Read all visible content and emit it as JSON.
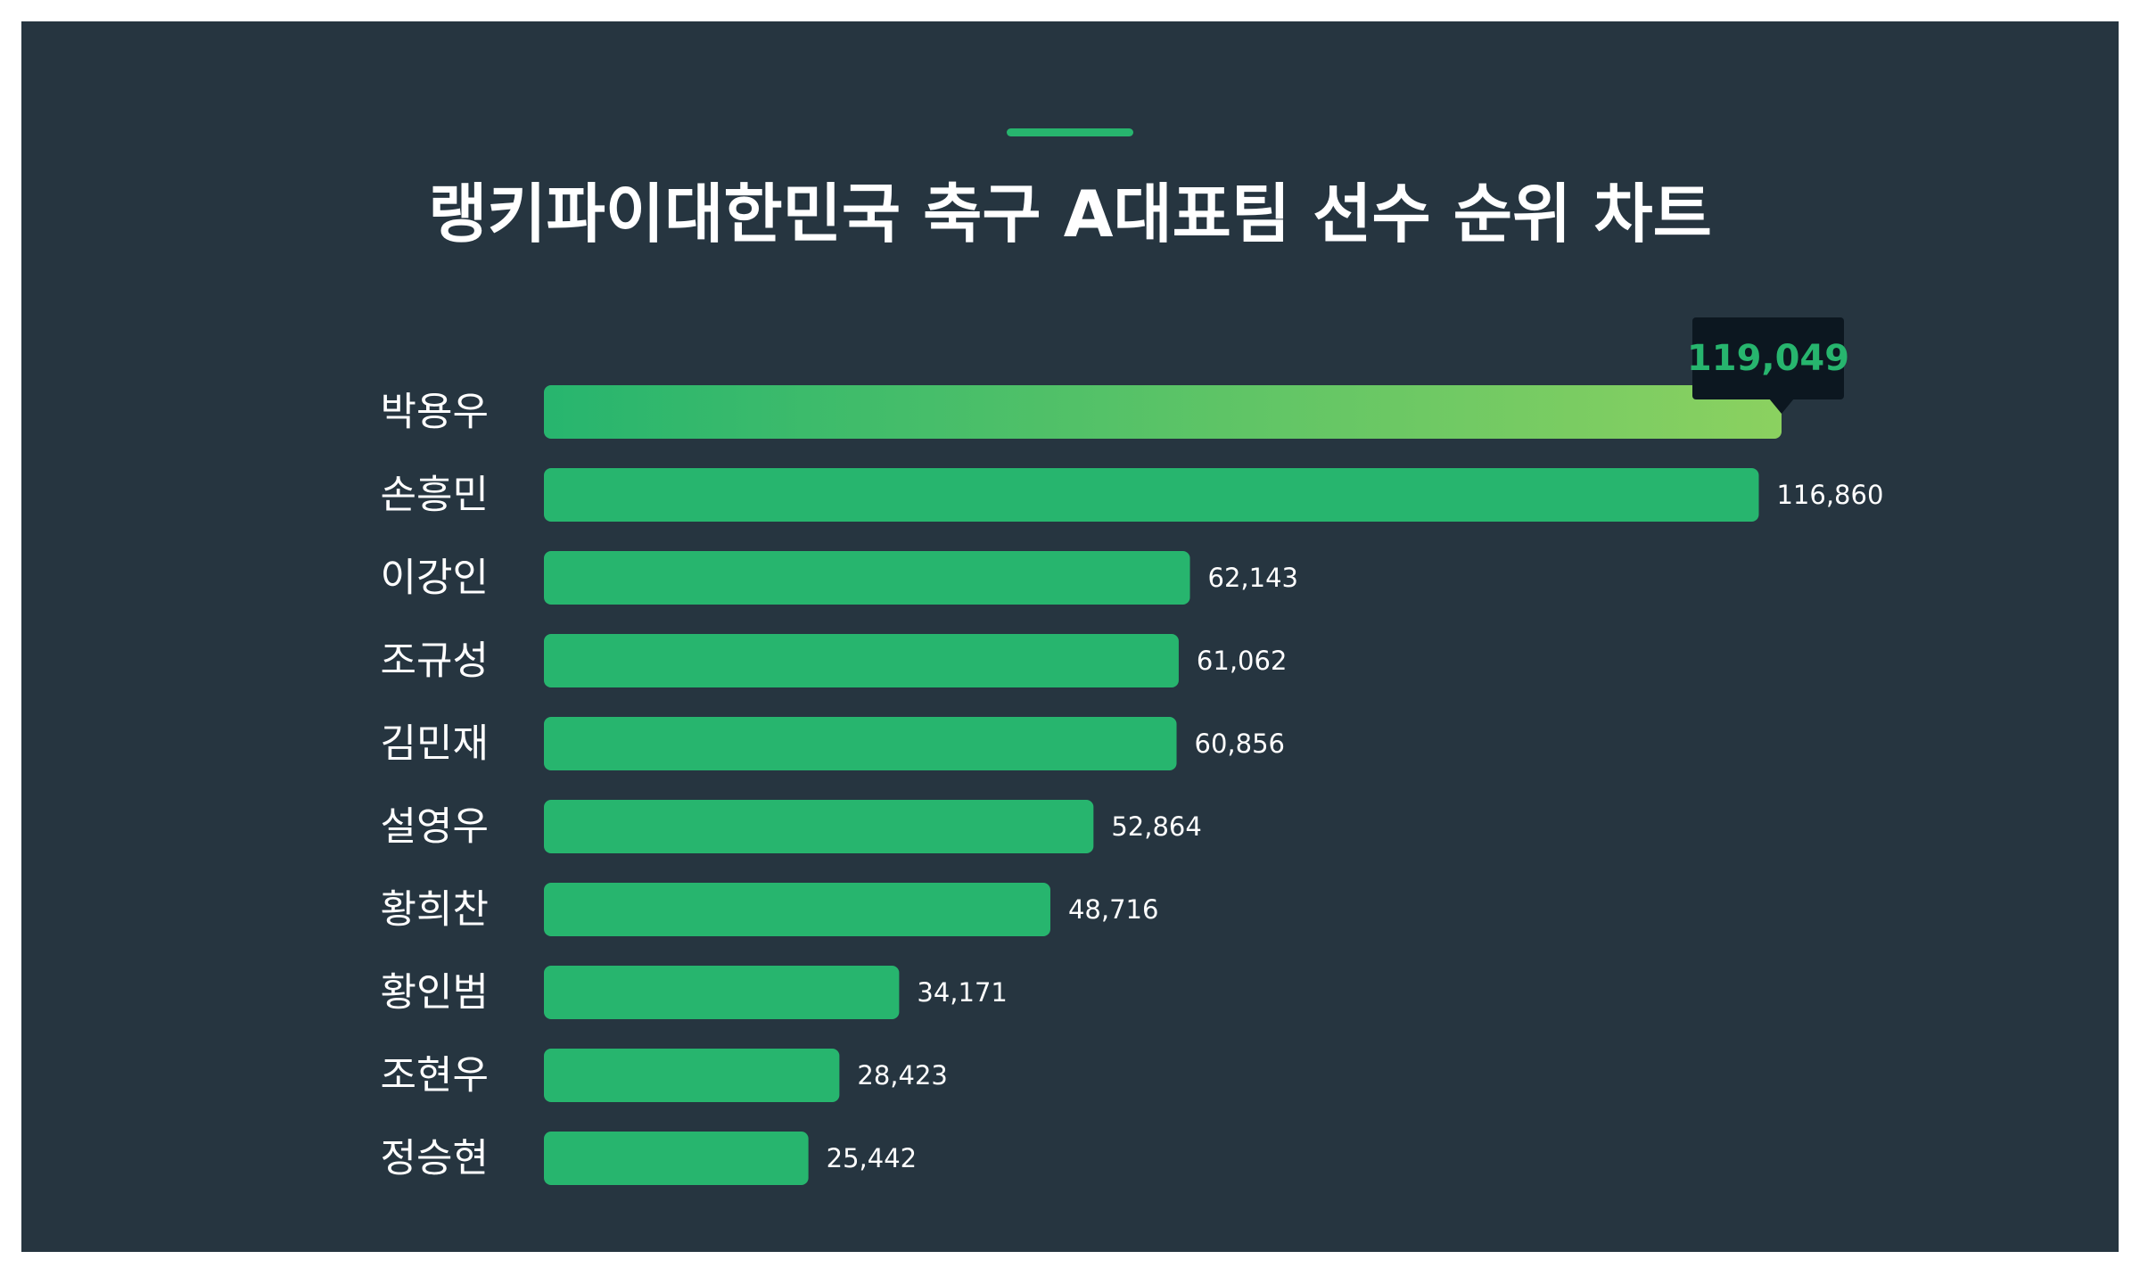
{
  "title": "랭키파이대한민국 축구 A대표팀 선수 순위 차트",
  "colors": {
    "background": "#263540",
    "bar": "#27b56e",
    "top_bar_gradient_start": "#27b56e",
    "top_bar_gradient_end": "#8bd160",
    "tooltip_background": "#0c1720",
    "tooltip_text": "#27b56e",
    "text": "#ffffff"
  },
  "chart_data": {
    "type": "bar",
    "orientation": "horizontal",
    "categories": [
      "박용우",
      "손흥민",
      "이강인",
      "조규성",
      "김민재",
      "설영우",
      "황희찬",
      "황인범",
      "조현우",
      "정승현"
    ],
    "values": [
      119049,
      116860,
      62143,
      61062,
      60856,
      52864,
      48716,
      34171,
      28423,
      25442
    ],
    "value_labels": [
      "119,049",
      "116,860",
      "62,143",
      "61,062",
      "60,856",
      "52,864",
      "48,716",
      "34,171",
      "28,423",
      "25,442"
    ],
    "title": "랭키파이대한민국 축구 A대표팀 선수 순위 차트",
    "xlabel": "",
    "ylabel": "",
    "xlim": [
      0,
      119049
    ],
    "grid": false,
    "highlight_index": 0
  }
}
